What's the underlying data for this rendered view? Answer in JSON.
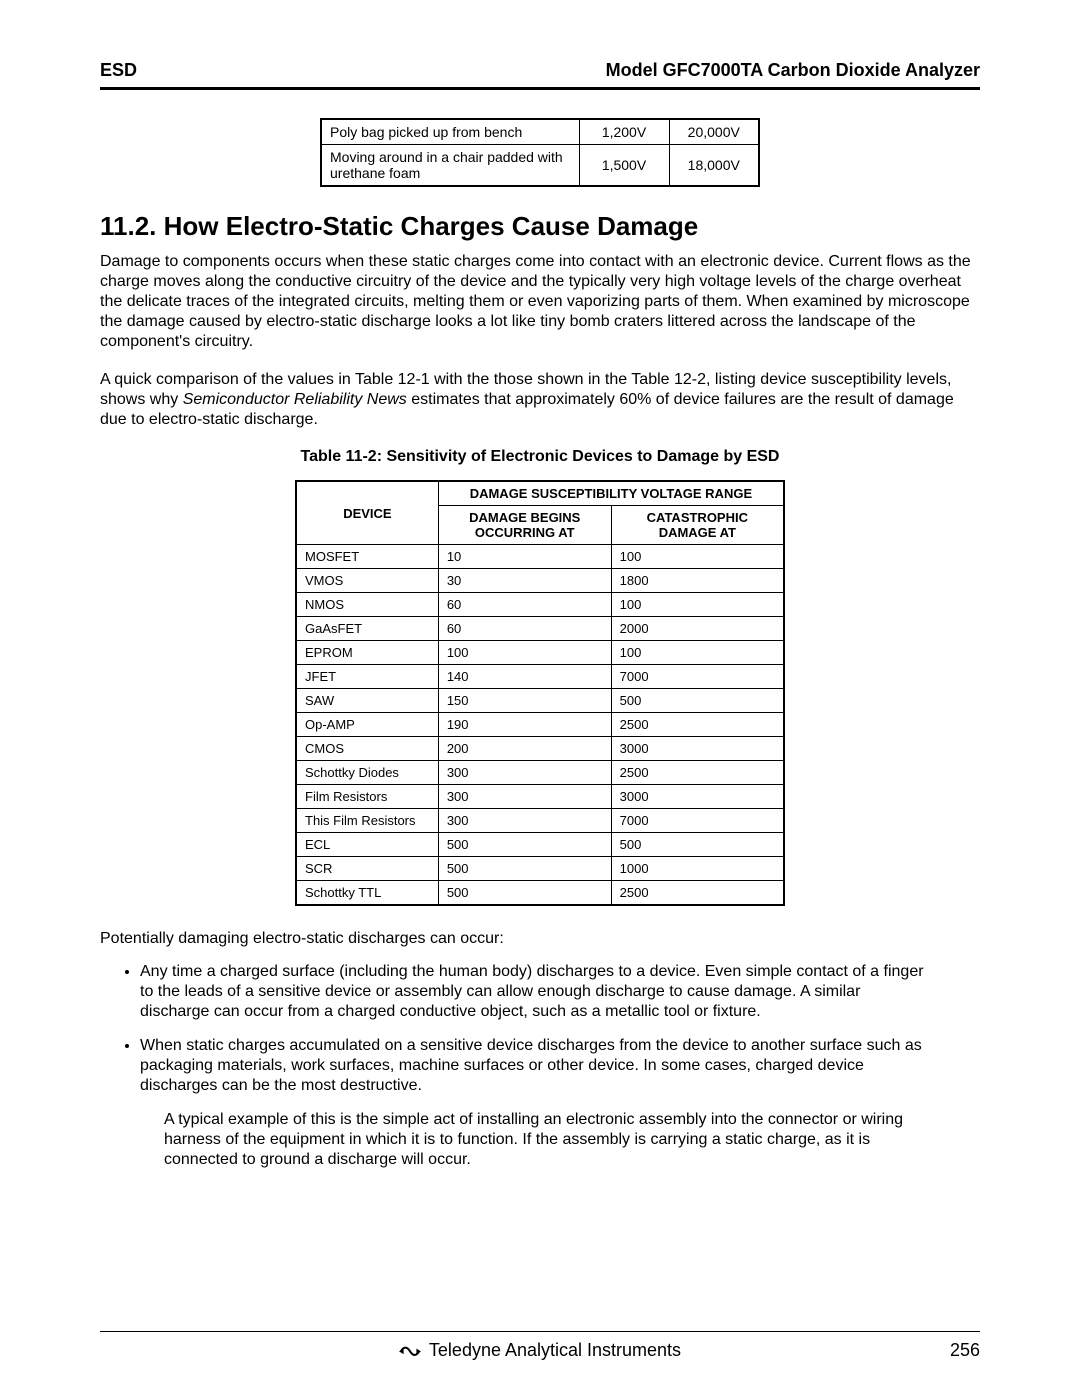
{
  "header": {
    "left": "ESD",
    "right": "Model GFC7000TA Carbon Dioxide Analyzer"
  },
  "mini_table": {
    "rows": [
      {
        "label": "Poly bag picked up from bench",
        "v1": "1,200V",
        "v2": "20,000V"
      },
      {
        "label": "Moving around in a chair padded with urethane foam",
        "v1": "1,500V",
        "v2": "18,000V"
      }
    ]
  },
  "section_heading": "11.2. How Electro-Static Charges Cause Damage",
  "para1": "Damage to components occurs when these static charges come into contact with an electronic device. Current flows as the charge moves along the conductive circuitry of the device and the typically very high voltage levels of the charge overheat the delicate traces of the integrated circuits, melting them or even vaporizing parts of them.  When examined by microscope the damage caused by electro-static discharge looks a lot like tiny bomb craters littered across the landscape of the component's circuitry.",
  "para2_pre": "A quick comparison of the values in Table 12-1 with the those shown in the Table 12-2, listing device susceptibility levels, shows why ",
  "para2_em": "Semiconductor Reliability News",
  "para2_post": " estimates that approximately 60% of device failures are the result of damage due to electro-static discharge.",
  "table_caption": "Table 11-2:   Sensitivity of Electronic Devices to Damage by ESD",
  "sens_table": {
    "device_hdr": "DEVICE",
    "range_hdr": "DAMAGE SUSCEPTIBILITY VOLTAGE RANGE",
    "begins_hdr": "DAMAGE BEGINS OCCURRING AT",
    "cat_hdr": "CATASTROPHIC DAMAGE AT",
    "rows": [
      {
        "d": "MOSFET",
        "b": "10",
        "c": "100"
      },
      {
        "d": "VMOS",
        "b": "30",
        "c": "1800"
      },
      {
        "d": "NMOS",
        "b": "60",
        "c": "100"
      },
      {
        "d": "GaAsFET",
        "b": "60",
        "c": "2000"
      },
      {
        "d": "EPROM",
        "b": "100",
        "c": "100"
      },
      {
        "d": "JFET",
        "b": "140",
        "c": "7000"
      },
      {
        "d": "SAW",
        "b": "150",
        "c": "500"
      },
      {
        "d": "Op-AMP",
        "b": "190",
        "c": "2500"
      },
      {
        "d": "CMOS",
        "b": "200",
        "c": "3000"
      },
      {
        "d": "Schottky Diodes",
        "b": "300",
        "c": "2500"
      },
      {
        "d": "Film Resistors",
        "b": "300",
        "c": "3000"
      },
      {
        "d": "This Film Resistors",
        "b": "300",
        "c": "7000"
      },
      {
        "d": "ECL",
        "b": "500",
        "c": "500"
      },
      {
        "d": "SCR",
        "b": "500",
        "c": "1000"
      },
      {
        "d": "Schottky TTL",
        "b": "500",
        "c": "2500"
      }
    ]
  },
  "lead_sentence": "Potentially damaging electro-static discharges can occur:",
  "bullets": [
    "Any time a charged surface (including the human body) discharges to a device.  Even simple contact of a finger to the leads of a sensitive device or assembly can allow enough discharge to cause damage.  A similar discharge can occur from a charged conductive object, such as a metallic tool or fixture.",
    "When static charges accumulated on a sensitive device discharges from the device to another surface such as packaging materials, work surfaces, machine surfaces or other device.  In some cases, charged device discharges can be the most destructive."
  ],
  "follow_para": "A typical example of this is the simple act of installing an electronic assembly into the connector or wiring harness of the equipment in which it is to function.  If the assembly is carrying a static charge, as it is connected to ground a discharge will occur.",
  "footer": {
    "company": "Teledyne Analytical Instruments",
    "page": "256"
  },
  "colors": {
    "text": "#000000",
    "bg": "#ffffff",
    "logo_fill": "#000000"
  }
}
